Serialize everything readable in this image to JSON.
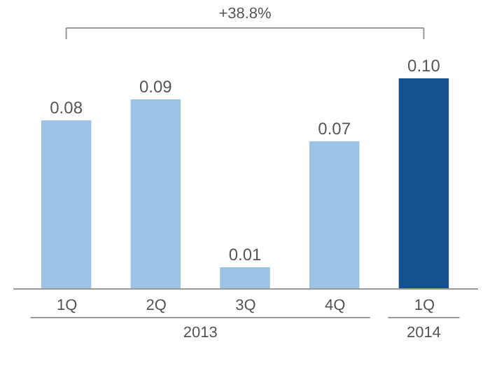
{
  "chart_data": {
    "type": "bar",
    "categories": [
      "1Q",
      "2Q",
      "3Q",
      "4Q",
      "1Q"
    ],
    "values": [
      0.08,
      0.09,
      0.01,
      0.07,
      0.1
    ],
    "value_labels": [
      "0.08",
      "0.09",
      "0.01",
      "0.07",
      "0.10"
    ],
    "data_labels": true,
    "colors": [
      "#9cc3e6",
      "#9cc3e6",
      "#9cc3e6",
      "#9cc3e6",
      "#15508f"
    ],
    "annotations": [
      "+38.8%",
      "2013",
      "2014"
    ]
  }
}
